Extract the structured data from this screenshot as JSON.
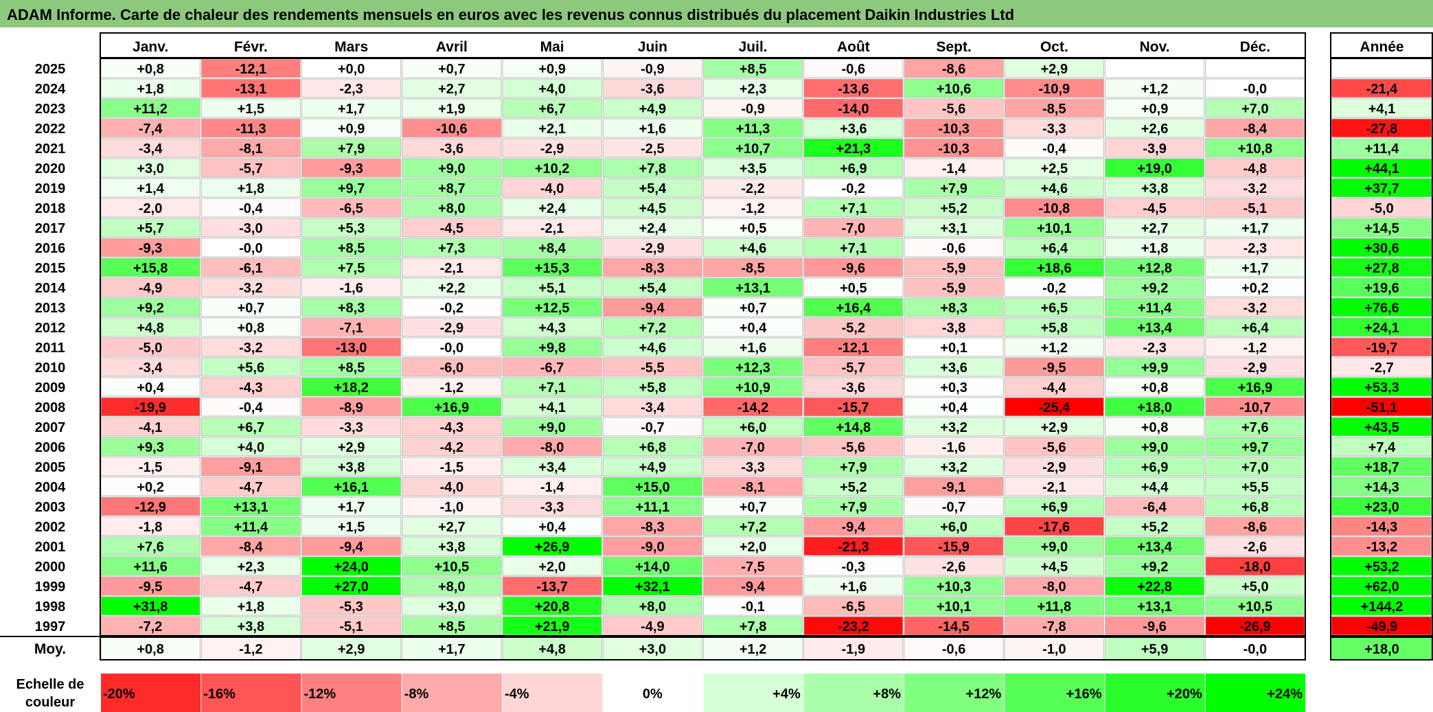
{
  "chart_data": {
    "type": "heatmap",
    "title": "ADAM Informe. Carte de chaleur des rendements mensuels en euros avec les revenus connus distribués du placement Daikin Industries Ltd",
    "months": [
      "Janv.",
      "Févr.",
      "Mars",
      "Avril",
      "Mai",
      "Juin",
      "Juil.",
      "Août",
      "Sept.",
      "Oct.",
      "Nov.",
      "Déc."
    ],
    "year_header": "Année",
    "years": [
      "2025",
      "2024",
      "2023",
      "2022",
      "2021",
      "2020",
      "2019",
      "2018",
      "2017",
      "2016",
      "2015",
      "2014",
      "2013",
      "2012",
      "2011",
      "2010",
      "2009",
      "2008",
      "2007",
      "2006",
      "2005",
      "2004",
      "2003",
      "2002",
      "2001",
      "2000",
      "1999",
      "1998",
      "1997"
    ],
    "values": [
      [
        "+0,8",
        "-12,1",
        "+0,0",
        "+0,7",
        "+0,9",
        "-0,9",
        "+8,5",
        "-0,6",
        "-8,6",
        "+2,9",
        "",
        ""
      ],
      [
        "+1,8",
        "-13,1",
        "-2,3",
        "+2,7",
        "+4,0",
        "-3,6",
        "+2,3",
        "-13,6",
        "+10,6",
        "-10,9",
        "+1,2",
        "-0,0"
      ],
      [
        "+11,2",
        "+1,5",
        "+1,7",
        "+1,9",
        "+6,7",
        "+4,9",
        "-0,9",
        "-14,0",
        "-5,6",
        "-8,5",
        "+0,9",
        "+7,0"
      ],
      [
        "-7,4",
        "-11,3",
        "+0,9",
        "-10,6",
        "+2,1",
        "+1,6",
        "+11,3",
        "+3,6",
        "-10,3",
        "-3,3",
        "+2,6",
        "-8,4"
      ],
      [
        "-3,4",
        "-8,1",
        "+7,9",
        "-3,6",
        "-2,9",
        "-2,5",
        "+10,7",
        "+21,3",
        "-10,3",
        "-0,4",
        "-3,9",
        "+10,8"
      ],
      [
        "+3,0",
        "-5,7",
        "-9,3",
        "+9,0",
        "+10,2",
        "+7,8",
        "+3,5",
        "+6,9",
        "-1,4",
        "+2,5",
        "+19,0",
        "-4,8"
      ],
      [
        "+1,4",
        "+1,8",
        "+9,7",
        "+8,7",
        "-4,0",
        "+5,4",
        "-2,2",
        "-0,2",
        "+7,9",
        "+4,6",
        "+3,8",
        "-3,2"
      ],
      [
        "-2,0",
        "-0,4",
        "-6,5",
        "+8,0",
        "+2,4",
        "+4,5",
        "-1,2",
        "+7,1",
        "+5,2",
        "-10,8",
        "-4,5",
        "-5,1"
      ],
      [
        "+5,7",
        "-3,0",
        "+5,3",
        "-4,5",
        "-2,1",
        "+2,4",
        "+0,5",
        "-7,0",
        "+3,1",
        "+10,1",
        "+2,7",
        "+1,7"
      ],
      [
        "-9,3",
        "-0,0",
        "+8,5",
        "+7,3",
        "+8,4",
        "-2,9",
        "+4,6",
        "+7,1",
        "-0,6",
        "+6,4",
        "+1,8",
        "-2,3"
      ],
      [
        "+15,8",
        "-6,1",
        "+7,5",
        "-2,1",
        "+15,3",
        "-8,3",
        "-8,5",
        "-9,6",
        "-5,9",
        "+18,6",
        "+12,8",
        "+1,7"
      ],
      [
        "-4,9",
        "-3,2",
        "-1,6",
        "+2,2",
        "+5,1",
        "+5,4",
        "+13,1",
        "+0,5",
        "-5,9",
        "-0,2",
        "+9,2",
        "+0,2"
      ],
      [
        "+9,2",
        "+0,7",
        "+8,3",
        "-0,2",
        "+12,5",
        "-9,4",
        "+0,7",
        "+16,4",
        "+8,3",
        "+6,5",
        "+11,4",
        "-3,2"
      ],
      [
        "+4,8",
        "+0,8",
        "-7,1",
        "-2,9",
        "+4,3",
        "+7,2",
        "+0,4",
        "-5,2",
        "-3,8",
        "+5,8",
        "+13,4",
        "+6,4"
      ],
      [
        "-5,0",
        "-3,2",
        "-13,0",
        "-0,0",
        "+9,8",
        "+4,6",
        "+1,6",
        "-12,1",
        "+0,1",
        "+1,2",
        "-2,3",
        "-1,2"
      ],
      [
        "-3,4",
        "+5,6",
        "+8,5",
        "-6,0",
        "-6,7",
        "-5,5",
        "+12,3",
        "-5,7",
        "+3,6",
        "-9,5",
        "+9,9",
        "-2,9"
      ],
      [
        "+0,4",
        "-4,3",
        "+18,2",
        "-1,2",
        "+7,1",
        "+5,8",
        "+10,9",
        "-3,6",
        "+0,3",
        "-4,4",
        "+0,8",
        "+16,9"
      ],
      [
        "-19,9",
        "-0,4",
        "-8,9",
        "+16,9",
        "+4,1",
        "-3,4",
        "-14,2",
        "-15,7",
        "+0,4",
        "-25,4",
        "+18,0",
        "-10,7"
      ],
      [
        "-4,1",
        "+6,7",
        "-3,3",
        "-4,3",
        "+9,0",
        "-0,7",
        "+6,0",
        "+14,8",
        "+3,2",
        "+2,9",
        "+0,8",
        "+7,6"
      ],
      [
        "+9,3",
        "+4,0",
        "+2,9",
        "-4,2",
        "-8,0",
        "+6,8",
        "-7,0",
        "-5,6",
        "-1,6",
        "-5,6",
        "+9,0",
        "+9,7"
      ],
      [
        "-1,5",
        "-9,1",
        "+3,8",
        "-1,5",
        "+3,4",
        "+4,9",
        "-3,3",
        "+7,9",
        "+3,2",
        "-2,9",
        "+6,9",
        "+7,0"
      ],
      [
        "+0,2",
        "-4,7",
        "+16,1",
        "-4,0",
        "-1,4",
        "+15,0",
        "-8,1",
        "+5,2",
        "-9,1",
        "-2,1",
        "+4,4",
        "+5,5"
      ],
      [
        "-12,9",
        "+13,1",
        "+1,7",
        "-1,0",
        "-3,3",
        "+11,1",
        "+0,7",
        "+7,9",
        "-0,7",
        "+6,9",
        "-6,4",
        "+6,8"
      ],
      [
        "-1,8",
        "+11,4",
        "+1,5",
        "+2,7",
        "+0,4",
        "-8,3",
        "+7,2",
        "-9,4",
        "+6,0",
        "-17,6",
        "+5,2",
        "-8,6"
      ],
      [
        "+7,6",
        "-8,4",
        "-9,4",
        "+3,8",
        "+26,9",
        "-9,0",
        "+2,0",
        "-21,3",
        "-15,9",
        "+9,0",
        "+13,4",
        "-2,6"
      ],
      [
        "+11,6",
        "+2,3",
        "+24,0",
        "+10,5",
        "+2,0",
        "+14,0",
        "-7,5",
        "-0,3",
        "-2,6",
        "+4,5",
        "+9,2",
        "-18,0"
      ],
      [
        "-9,5",
        "-4,7",
        "+27,0",
        "+8,0",
        "-13,7",
        "+32,1",
        "-9,4",
        "+1,6",
        "+10,3",
        "-8,0",
        "+22,8",
        "+5,0"
      ],
      [
        "+31,8",
        "+1,8",
        "-5,3",
        "+3,0",
        "+20,8",
        "+8,0",
        "-0,1",
        "-6,5",
        "+10,1",
        "+11,8",
        "+13,1",
        "+10,5"
      ],
      [
        "-7,2",
        "+3,8",
        "-5,1",
        "+8,5",
        "+21,9",
        "-4,9",
        "+7,8",
        "-23,2",
        "-14,5",
        "-7,8",
        "-9,6",
        "-26,9"
      ]
    ],
    "annual": [
      "",
      "-21,4",
      "+4,1",
      "-27,8",
      "+11,4",
      "+44,1",
      "+37,7",
      "-5,0",
      "+14,5",
      "+30,6",
      "+27,8",
      "+19,6",
      "+76,6",
      "+24,1",
      "-19,7",
      "-2,7",
      "+53,3",
      "-51,1",
      "+43,5",
      "+7,4",
      "+18,7",
      "+14,3",
      "+23,0",
      "-14,3",
      "-13,2",
      "+53,2",
      "+62,0",
      "+144,2",
      "-49,9"
    ],
    "average_label": "Moy.",
    "averages": [
      "+0,8",
      "-1,2",
      "+2,9",
      "+1,7",
      "+4,8",
      "+3,0",
      "+1,2",
      "-1,9",
      "-0,6",
      "-1,0",
      "+5,9",
      "-0,0"
    ],
    "average_annual": "+18,0",
    "scale_label": [
      "Echelle de",
      "couleur"
    ],
    "scale": [
      {
        "label": "-20%",
        "value": -20
      },
      {
        "label": "-16%",
        "value": -16
      },
      {
        "label": "-12%",
        "value": -12
      },
      {
        "label": "-8%",
        "value": -8
      },
      {
        "label": "-4%",
        "value": -4
      },
      {
        "label": "0%",
        "value": 0
      },
      {
        "label": "+4%",
        "value": 4
      },
      {
        "label": "+8%",
        "value": 8
      },
      {
        "label": "+12%",
        "value": 12
      },
      {
        "label": "+16%",
        "value": 16
      },
      {
        "label": "+20%",
        "value": 20
      },
      {
        "label": "+24%",
        "value": 24
      }
    ],
    "colors": {
      "title_bar": "#8dc97c",
      "negative": "#ff0000",
      "neutral": "#ffffff",
      "positive": "#00ff00",
      "border": "#000000",
      "grid": "#bfbfbf"
    }
  }
}
